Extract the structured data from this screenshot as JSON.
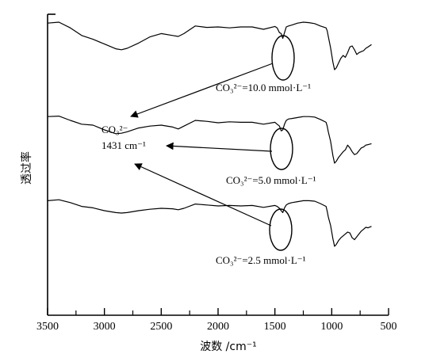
{
  "chart_data": {
    "type": "line",
    "title": "",
    "xlabel": "波数 /cm⁻¹",
    "ylabel": "透过率",
    "xlim": [
      3500,
      500
    ],
    "x_reversed": true,
    "x_ticks": [
      3500,
      3000,
      2500,
      2000,
      1500,
      1000,
      500
    ],
    "y_ticks": [],
    "grid": false,
    "series": [
      {
        "name": "CO₃²⁻=10.0 mmol·L⁻¹",
        "x": [
          3500,
          3400,
          3300,
          3200,
          3100,
          3000,
          2900,
          2850,
          2800,
          2700,
          2600,
          2500,
          2400,
          2350,
          2300,
          2200,
          2100,
          2000,
          1900,
          1800,
          1700,
          1600,
          1500,
          1480,
          1460,
          1445,
          1431,
          1415,
          1400,
          1380,
          1350,
          1300,
          1250,
          1200,
          1150,
          1100,
          1050,
          1040,
          1030,
          1010,
          990,
          975,
          960,
          940,
          920,
          900,
          880,
          860,
          840,
          820,
          800,
          780,
          760,
          740,
          720,
          700,
          680,
          650
        ],
        "y": [
          8.6,
          8.7,
          8.1,
          7.3,
          6.9,
          6.4,
          5.9,
          5.8,
          5.95,
          6.5,
          7.15,
          7.5,
          7.3,
          7.2,
          7.5,
          8.3,
          8.15,
          8.2,
          8.1,
          8.2,
          8.2,
          7.95,
          8.25,
          8.1,
          7.6,
          7.5,
          7.0,
          7.6,
          8.2,
          8.3,
          8.4,
          8.6,
          8.7,
          8.65,
          8.55,
          8.3,
          8.1,
          7.8,
          7.2,
          6.0,
          4.5,
          3.7,
          3.9,
          4.4,
          4.9,
          5.2,
          5.0,
          5.5,
          6.1,
          6.2,
          5.8,
          5.3,
          5.5,
          5.6,
          5.7,
          5.95,
          6.1,
          6.35
        ]
      },
      {
        "name": "CO₃²⁻=5.0 mmol·L⁻¹",
        "x": [
          3500,
          3400,
          3300,
          3200,
          3100,
          3000,
          2900,
          2850,
          2800,
          2700,
          2600,
          2500,
          2400,
          2350,
          2300,
          2200,
          2100,
          2000,
          1900,
          1800,
          1700,
          1600,
          1500,
          1480,
          1460,
          1445,
          1431,
          1415,
          1400,
          1380,
          1350,
          1300,
          1250,
          1200,
          1150,
          1100,
          1050,
          1040,
          1030,
          1010,
          990,
          975,
          960,
          940,
          920,
          900,
          880,
          860,
          840,
          820,
          800,
          780,
          760,
          740,
          720,
          700,
          680,
          650
        ],
        "y": [
          8.6,
          8.65,
          8.2,
          7.8,
          7.7,
          7.2,
          6.8,
          6.85,
          7.0,
          7.4,
          7.6,
          7.7,
          7.5,
          7.3,
          7.6,
          8.2,
          8.1,
          7.95,
          8.05,
          8.0,
          8.0,
          7.8,
          8.0,
          7.8,
          7.6,
          7.1,
          7.2,
          7.8,
          8.2,
          8.35,
          8.4,
          8.5,
          8.6,
          8.6,
          8.55,
          8.3,
          8.0,
          7.6,
          7.0,
          6.0,
          4.5,
          3.7,
          3.9,
          4.3,
          4.6,
          4.9,
          5.1,
          5.6,
          5.3,
          4.9,
          4.6,
          4.7,
          5.0,
          5.3,
          5.4,
          5.6,
          5.65,
          5.75
        ]
      },
      {
        "name": "CO₃²⁻=2.5 mmol·L⁻¹",
        "x": [
          3500,
          3400,
          3300,
          3200,
          3100,
          3000,
          2900,
          2850,
          2800,
          2700,
          2600,
          2500,
          2400,
          2350,
          2300,
          2200,
          2100,
          2000,
          1900,
          1800,
          1700,
          1600,
          1500,
          1480,
          1460,
          1445,
          1431,
          1415,
          1400,
          1380,
          1350,
          1300,
          1250,
          1200,
          1150,
          1100,
          1050,
          1040,
          1030,
          1010,
          990,
          975,
          960,
          940,
          920,
          900,
          880,
          860,
          840,
          820,
          800,
          780,
          760,
          740,
          720,
          700,
          680,
          650
        ],
        "y": [
          8.5,
          8.6,
          8.3,
          7.9,
          7.75,
          7.45,
          7.25,
          7.2,
          7.25,
          7.45,
          7.6,
          7.7,
          7.65,
          7.55,
          7.7,
          8.15,
          8.05,
          7.95,
          8.0,
          7.95,
          8.0,
          7.8,
          8.0,
          7.9,
          7.7,
          7.45,
          7.25,
          7.75,
          8.05,
          8.2,
          8.3,
          8.4,
          8.5,
          8.5,
          8.45,
          8.2,
          7.9,
          7.4,
          6.8,
          5.9,
          4.5,
          3.7,
          3.9,
          4.3,
          4.6,
          4.8,
          5.0,
          5.2,
          5.1,
          4.6,
          4.4,
          4.7,
          5.0,
          5.3,
          5.5,
          5.7,
          5.65,
          5.8
        ]
      }
    ],
    "annotations": {
      "peak_label": "CO₃²⁻",
      "peak_wavenumber": "1431 cm⁻¹",
      "peak_x": 1431,
      "labels": [
        "CO₃²⁻=10.0 mmol·L⁻¹",
        "CO₃²⁻=5.0 mmol·L⁻¹",
        "CO₃²⁻=2.5 mmol·L⁻¹"
      ]
    }
  }
}
